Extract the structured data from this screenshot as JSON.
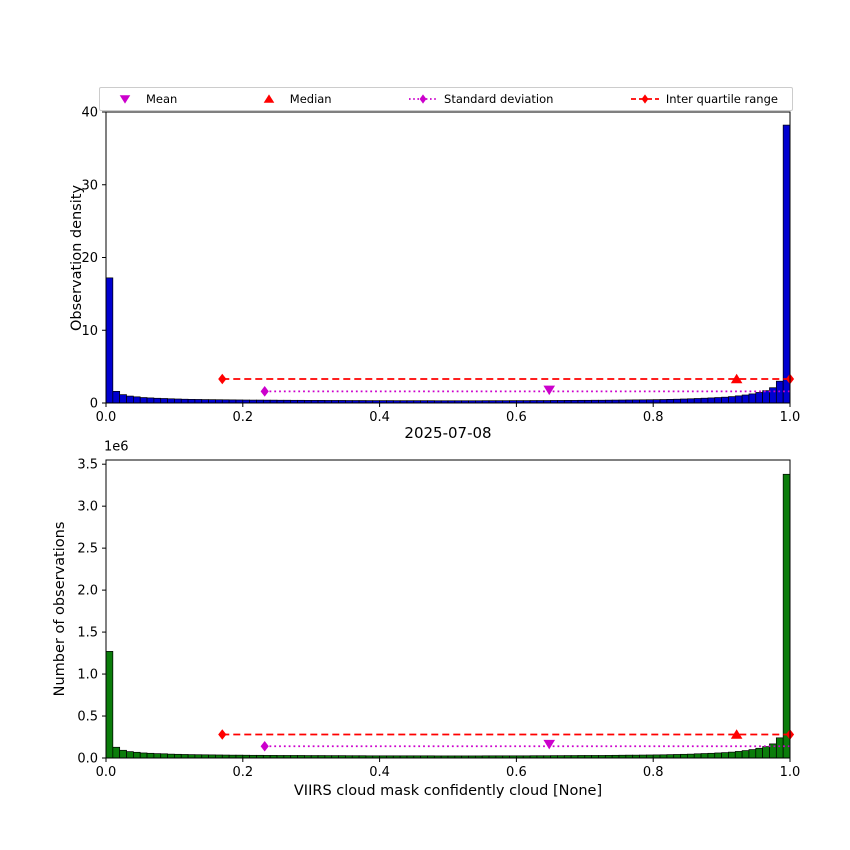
{
  "figure": {
    "title": "2025-07-08",
    "xlabel": "VIIRS cloud mask confidently cloud [None]",
    "background": "#ffffff"
  },
  "colors": {
    "mean": "#cc00cc",
    "median": "#ff0000",
    "std": "#cc00cc",
    "iqr": "#ff0000",
    "top_bars": "#0000d0",
    "bottom_bars": "#0b7d0b",
    "bar_edge": "#000000"
  },
  "legend": {
    "items": [
      {
        "label": "Mean",
        "marker": "triangle-down",
        "color": "#cc00cc",
        "line": "none"
      },
      {
        "label": "Median",
        "marker": "triangle-up",
        "color": "#ff0000",
        "line": "none"
      },
      {
        "label": "Standard deviation",
        "marker": "diamond",
        "color": "#cc00cc",
        "line": "dotted"
      },
      {
        "label": "Inter quartile range",
        "marker": "diamond",
        "color": "#ff0000",
        "line": "dashed"
      }
    ]
  },
  "chart_data": [
    {
      "type": "bar",
      "title": "",
      "ylabel": "Observation density",
      "xlabel": "",
      "bar_color": "#0000d0",
      "edge_color": "#000000",
      "x_start": 0.0,
      "bin_width": 0.01,
      "xlim": [
        0.0,
        1.0
      ],
      "ylim": [
        0,
        40
      ],
      "yticks": [
        0,
        10,
        20,
        30,
        40
      ],
      "ytick_labels": [
        "0",
        "10",
        "20",
        "30",
        "40"
      ],
      "xticks": [
        0.0,
        0.2,
        0.4,
        0.6,
        0.8,
        1.0
      ],
      "xtick_labels": [
        "0.0",
        "0.2",
        "0.4",
        "0.6",
        "0.8",
        "1.0"
      ],
      "values": [
        17.2,
        1.6,
        1.15,
        0.95,
        0.85,
        0.75,
        0.7,
        0.65,
        0.62,
        0.58,
        0.55,
        0.52,
        0.5,
        0.49,
        0.47,
        0.46,
        0.45,
        0.44,
        0.43,
        0.42,
        0.41,
        0.4,
        0.4,
        0.39,
        0.39,
        0.38,
        0.38,
        0.37,
        0.37,
        0.36,
        0.36,
        0.36,
        0.35,
        0.35,
        0.35,
        0.34,
        0.34,
        0.34,
        0.33,
        0.33,
        0.33,
        0.33,
        0.32,
        0.32,
        0.32,
        0.32,
        0.32,
        0.32,
        0.31,
        0.31,
        0.31,
        0.31,
        0.31,
        0.31,
        0.31,
        0.32,
        0.32,
        0.32,
        0.32,
        0.33,
        0.33,
        0.33,
        0.34,
        0.34,
        0.34,
        0.35,
        0.35,
        0.36,
        0.36,
        0.37,
        0.37,
        0.38,
        0.38,
        0.39,
        0.4,
        0.41,
        0.42,
        0.43,
        0.44,
        0.45,
        0.46,
        0.48,
        0.5,
        0.52,
        0.55,
        0.58,
        0.62,
        0.66,
        0.7,
        0.75,
        0.8,
        0.88,
        0.98,
        1.1,
        1.25,
        1.45,
        1.7,
        2.1,
        3.0,
        38.2
      ],
      "stats": {
        "mean": {
          "x": 0.648,
          "y": 1.8
        },
        "median": {
          "x": 0.922,
          "y": 3.3
        },
        "std_line": {
          "x1": 0.232,
          "x2": 1.0,
          "y": 1.6
        },
        "iqr_line": {
          "x1": 0.17,
          "x2": 1.0,
          "y": 3.3
        }
      }
    },
    {
      "type": "bar",
      "title": "2025-07-08",
      "ylabel": "Number of observations",
      "xlabel": "VIIRS cloud mask confidently cloud [None]",
      "offset_text": "1e6",
      "bar_color": "#0b7d0b",
      "edge_color": "#000000",
      "x_start": 0.0,
      "bin_width": 0.01,
      "xlim": [
        0.0,
        1.0
      ],
      "ylim": [
        0,
        3550000
      ],
      "yticks": [
        0,
        500000,
        1000000,
        1500000,
        2000000,
        2500000,
        3000000,
        3500000
      ],
      "ytick_labels": [
        "0.0",
        "0.5",
        "1.0",
        "1.5",
        "2.0",
        "2.5",
        "3.0",
        "3.5"
      ],
      "xticks": [
        0.0,
        0.2,
        0.4,
        0.6,
        0.8,
        1.0
      ],
      "xtick_labels": [
        "0.0",
        "0.2",
        "0.4",
        "0.6",
        "0.8",
        "1.0"
      ],
      "values": [
        1270000,
        128000,
        92000,
        76000,
        68000,
        60000,
        56000,
        52000,
        50000,
        46000,
        44000,
        42000,
        40000,
        39000,
        38000,
        37000,
        36000,
        35000,
        34000,
        34000,
        33000,
        32000,
        32000,
        31000,
        31000,
        30000,
        30000,
        30000,
        30000,
        29000,
        29000,
        29000,
        28000,
        28000,
        28000,
        27000,
        27000,
        27000,
        26000,
        26000,
        26000,
        26000,
        26000,
        26000,
        26000,
        26000,
        26000,
        26000,
        25000,
        25000,
        25000,
        25000,
        25000,
        25000,
        25000,
        26000,
        26000,
        26000,
        26000,
        26000,
        26000,
        26000,
        27000,
        27000,
        27000,
        28000,
        28000,
        29000,
        29000,
        30000,
        30000,
        30000,
        30000,
        31000,
        32000,
        33000,
        34000,
        34000,
        35000,
        36000,
        37000,
        38000,
        40000,
        42000,
        44000,
        46000,
        50000,
        53000,
        56000,
        60000,
        64000,
        70000,
        78000,
        88000,
        100000,
        116000,
        136000,
        168000,
        240000,
        3380000
      ],
      "stats": {
        "mean": {
          "x": 0.648,
          "y": 165000
        },
        "median": {
          "x": 0.922,
          "y": 280000
        },
        "std_line": {
          "x1": 0.232,
          "x2": 1.0,
          "y": 140000
        },
        "iqr_line": {
          "x1": 0.17,
          "x2": 1.0,
          "y": 280000
        }
      }
    }
  ]
}
